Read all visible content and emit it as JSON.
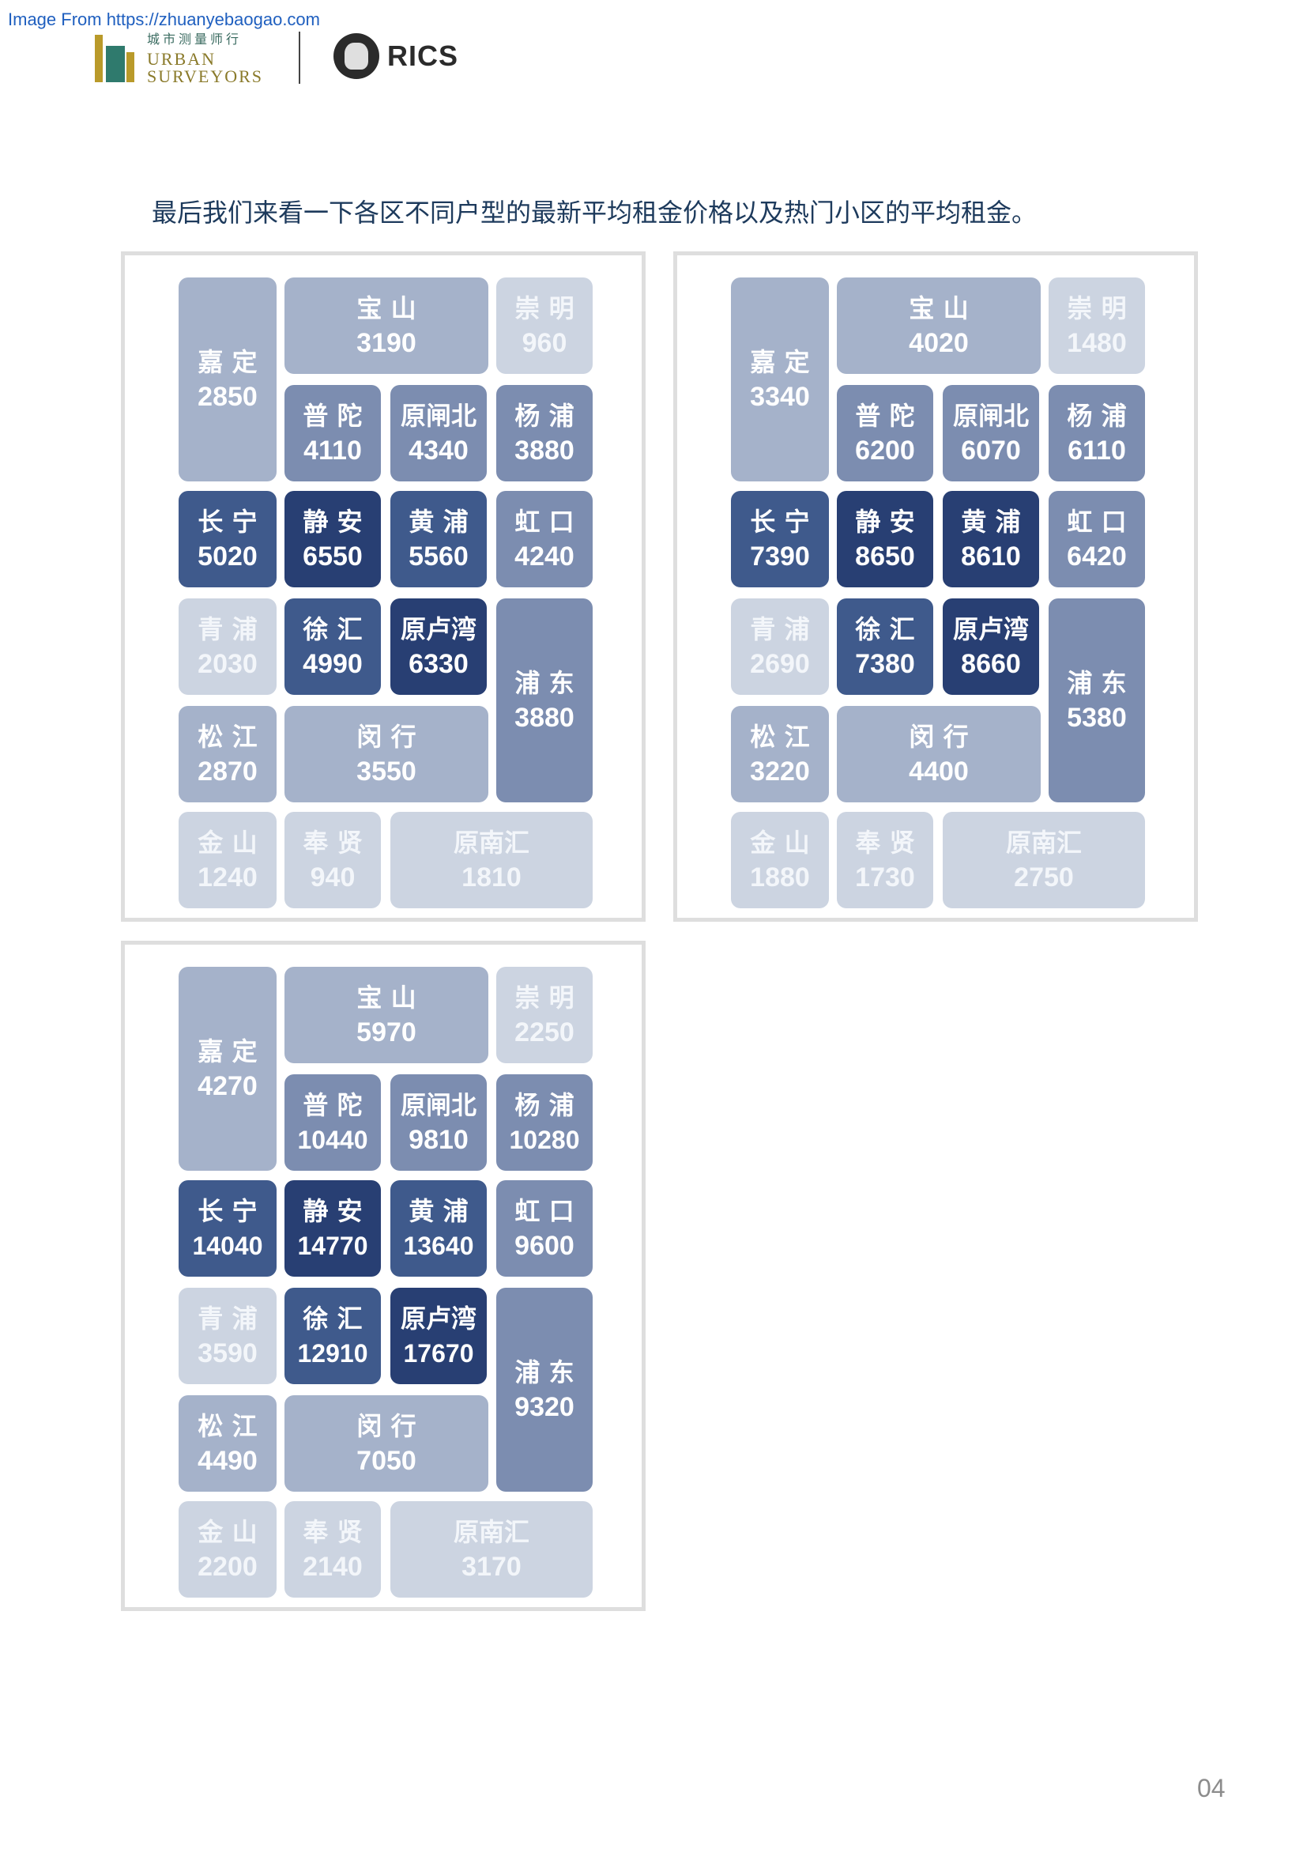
{
  "source_link": "Image From https://zhuanyebaogao.com",
  "logos": {
    "urban": {
      "cn": "城市测量师行",
      "en_line1": "URBAN",
      "en_line2": "SURVEYORS"
    },
    "rics": {
      "text": "RICS"
    }
  },
  "intro_text": "最后我们来看一下各区不同户型的最新平均租金价格以及热门小区的平均租金。",
  "colors": {
    "level_1": "#ccd4e1",
    "level_2": "#a5b2ca",
    "level_3": "#7c8db0",
    "level_4": "#3f5a8c",
    "level_5": "#283f73"
  },
  "panels": [
    {
      "districts": {
        "jiading": {
          "name": "嘉 定",
          "value": "2850",
          "level": 2
        },
        "baoshan": {
          "name": "宝 山",
          "value": "3190",
          "level": 2
        },
        "chongming": {
          "name": "崇 明",
          "value": "960",
          "level": 1
        },
        "putuo": {
          "name": "普 陀",
          "value": "4110",
          "level": 3
        },
        "zhabei": {
          "name": "原闸北",
          "value": "4340",
          "level": 3
        },
        "yangpu": {
          "name": "杨 浦",
          "value": "3880",
          "level": 3
        },
        "changning": {
          "name": "长 宁",
          "value": "5020",
          "level": 4
        },
        "jingan": {
          "name": "静 安",
          "value": "6550",
          "level": 5
        },
        "huangpu": {
          "name": "黄 浦",
          "value": "5560",
          "level": 4
        },
        "hongkou": {
          "name": "虹 口",
          "value": "4240",
          "level": 3
        },
        "qingpu": {
          "name": "青 浦",
          "value": "2030",
          "level": 1
        },
        "xuhui": {
          "name": "徐 汇",
          "value": "4990",
          "level": 4
        },
        "luwan": {
          "name": "原卢湾",
          "value": "6330",
          "level": 5
        },
        "pudong": {
          "name": "浦 东",
          "value": "3880",
          "level": 3
        },
        "songjiang": {
          "name": "松 江",
          "value": "2870",
          "level": 2
        },
        "minhang": {
          "name": "闵 行",
          "value": "3550",
          "level": 2
        },
        "jinshan": {
          "name": "金 山",
          "value": "1240",
          "level": 1
        },
        "fengxian": {
          "name": "奉 贤",
          "value": "940",
          "level": 1
        },
        "nanhui": {
          "name": "原南汇",
          "value": "1810",
          "level": 1
        }
      }
    },
    {
      "districts": {
        "jiading": {
          "name": "嘉 定",
          "value": "3340",
          "level": 2
        },
        "baoshan": {
          "name": "宝 山",
          "value": "4020",
          "level": 2
        },
        "chongming": {
          "name": "崇 明",
          "value": "1480",
          "level": 1
        },
        "putuo": {
          "name": "普 陀",
          "value": "6200",
          "level": 3
        },
        "zhabei": {
          "name": "原闸北",
          "value": "6070",
          "level": 3
        },
        "yangpu": {
          "name": "杨 浦",
          "value": "6110",
          "level": 3
        },
        "changning": {
          "name": "长 宁",
          "value": "7390",
          "level": 4
        },
        "jingan": {
          "name": "静 安",
          "value": "8650",
          "level": 5
        },
        "huangpu": {
          "name": "黄 浦",
          "value": "8610",
          "level": 5
        },
        "hongkou": {
          "name": "虹 口",
          "value": "6420",
          "level": 3
        },
        "qingpu": {
          "name": "青 浦",
          "value": "2690",
          "level": 1
        },
        "xuhui": {
          "name": "徐 汇",
          "value": "7380",
          "level": 4
        },
        "luwan": {
          "name": "原卢湾",
          "value": "8660",
          "level": 5
        },
        "pudong": {
          "name": "浦 东",
          "value": "5380",
          "level": 3
        },
        "songjiang": {
          "name": "松 江",
          "value": "3220",
          "level": 2
        },
        "minhang": {
          "name": "闵 行",
          "value": "4400",
          "level": 2
        },
        "jinshan": {
          "name": "金 山",
          "value": "1880",
          "level": 1
        },
        "fengxian": {
          "name": "奉 贤",
          "value": "1730",
          "level": 1
        },
        "nanhui": {
          "name": "原南汇",
          "value": "2750",
          "level": 1
        }
      }
    },
    {
      "districts": {
        "jiading": {
          "name": "嘉 定",
          "value": "4270",
          "level": 2
        },
        "baoshan": {
          "name": "宝 山",
          "value": "5970",
          "level": 2
        },
        "chongming": {
          "name": "崇 明",
          "value": "2250",
          "level": 1
        },
        "putuo": {
          "name": "普 陀",
          "value": "10440",
          "level": 3
        },
        "zhabei": {
          "name": "原闸北",
          "value": "9810",
          "level": 3
        },
        "yangpu": {
          "name": "杨 浦",
          "value": "10280",
          "level": 3
        },
        "changning": {
          "name": "长 宁",
          "value": "14040",
          "level": 4
        },
        "jingan": {
          "name": "静 安",
          "value": "14770",
          "level": 5
        },
        "huangpu": {
          "name": "黄 浦",
          "value": "13640",
          "level": 4
        },
        "hongkou": {
          "name": "虹 口",
          "value": "9600",
          "level": 3
        },
        "qingpu": {
          "name": "青 浦",
          "value": "3590",
          "level": 1
        },
        "xuhui": {
          "name": "徐 汇",
          "value": "12910",
          "level": 4
        },
        "luwan": {
          "name": "原卢湾",
          "value": "17670",
          "level": 5
        },
        "pudong": {
          "name": "浦 东",
          "value": "9320",
          "level": 3
        },
        "songjiang": {
          "name": "松 江",
          "value": "4490",
          "level": 2
        },
        "minhang": {
          "name": "闵 行",
          "value": "7050",
          "level": 2
        },
        "jinshan": {
          "name": "金 山",
          "value": "2200",
          "level": 1
        },
        "fengxian": {
          "name": "奉 贤",
          "value": "2140",
          "level": 1
        },
        "nanhui": {
          "name": "原南汇",
          "value": "3170",
          "level": 1
        }
      }
    }
  ],
  "page_number": "04"
}
